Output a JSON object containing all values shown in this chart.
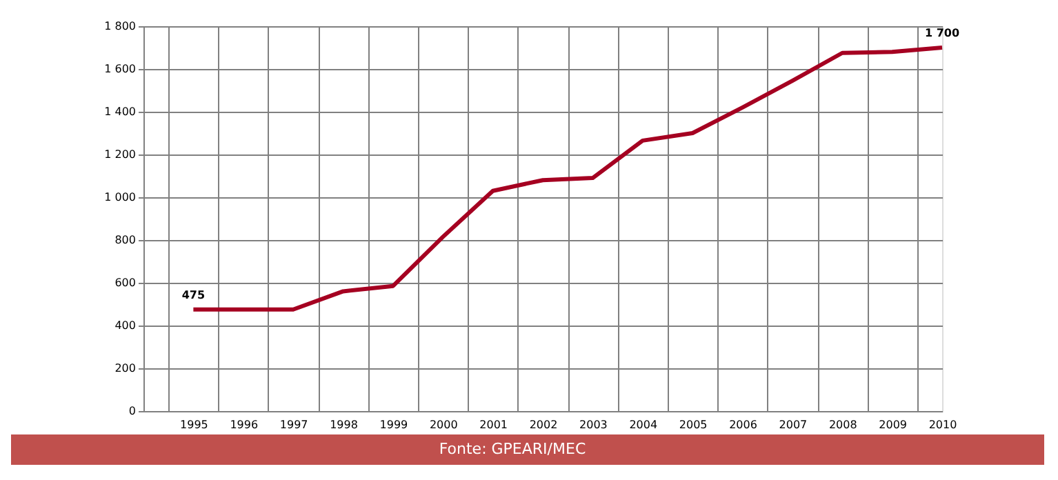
{
  "chart_data": {
    "type": "line",
    "categories": [
      "1995",
      "1996",
      "1997",
      "1998",
      "1999",
      "2000",
      "2001",
      "2002",
      "2003",
      "2004",
      "2005",
      "2006",
      "2007",
      "2008",
      "2009",
      "2010"
    ],
    "series": [
      {
        "color": "#a50021",
        "values": [
          475,
          475,
          475,
          560,
          585,
          815,
          1030,
          1080,
          1090,
          1265,
          1300,
          1420,
          1545,
          1675,
          1680,
          1700
        ],
        "value_labels": [
          "475",
          null,
          null,
          null,
          null,
          null,
          null,
          null,
          null,
          null,
          null,
          null,
          null,
          null,
          null,
          "1 700"
        ]
      }
    ],
    "ylim": [
      0,
      1800
    ],
    "yticks": [
      0,
      200,
      400,
      600,
      800,
      {
        "value": 1000,
        "label": "1 000"
      },
      {
        "value": 1200,
        "label": "1 200"
      },
      {
        "value": 1400,
        "label": "1 400"
      },
      {
        "value": 1600,
        "label": "1 600"
      },
      {
        "value": 1800,
        "label": "1 800"
      }
    ],
    "grid": true,
    "marker": "none",
    "line_style": "solid",
    "annotations": [
      "Fonte: GPEARI/MEC"
    ]
  }
}
